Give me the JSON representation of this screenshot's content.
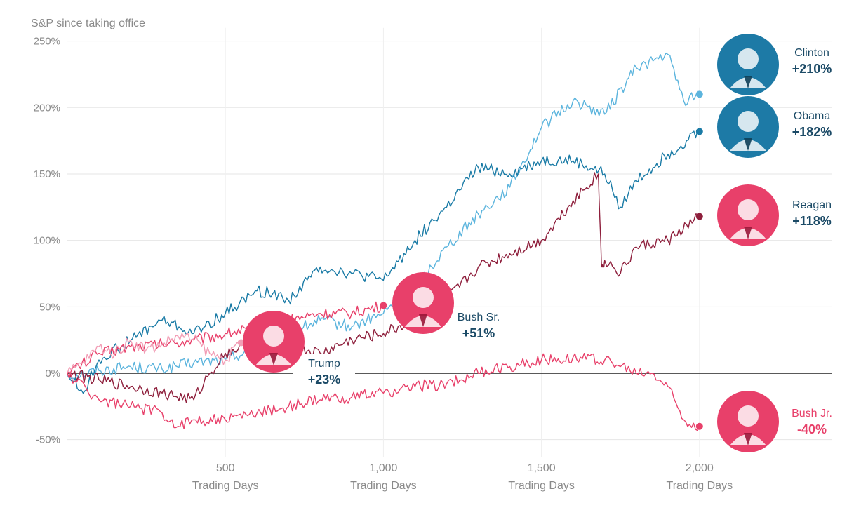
{
  "chart_data": {
    "type": "line",
    "title": "S&P since taking office",
    "ylim": [
      -60,
      260
    ],
    "xlim": [
      0,
      2450
    ],
    "y_ticks": [
      {
        "value": 250,
        "label": "250%"
      },
      {
        "value": 200,
        "label": "200%"
      },
      {
        "value": 150,
        "label": "150%"
      },
      {
        "value": 100,
        "label": "100%"
      },
      {
        "value": 50,
        "label": "50%"
      },
      {
        "value": 0,
        "label": "0%"
      },
      {
        "value": -50,
        "label": "-50%"
      }
    ],
    "x_ticks": [
      {
        "value": 500,
        "label": "500",
        "sublabel": "Trading Days"
      },
      {
        "value": 1000,
        "label": "1,000",
        "sublabel": "Trading Days"
      },
      {
        "value": 1500,
        "label": "1,500",
        "sublabel": "Trading Days"
      },
      {
        "value": 2000,
        "label": "2,000",
        "sublabel": "Trading Days"
      }
    ],
    "grid": true,
    "series": [
      {
        "name": "Clinton",
        "value_label": "+210%",
        "color": "#5bb4dd",
        "label_color": "#1b4a66",
        "badge_color": "#1d7aa6",
        "x": [
          0,
          100,
          200,
          300,
          400,
          500,
          600,
          700,
          800,
          900,
          1000,
          1100,
          1200,
          1300,
          1400,
          1500,
          1600,
          1700,
          1800,
          1900,
          1950,
          2000
        ],
        "y": [
          -2,
          2,
          5,
          3,
          8,
          10,
          20,
          30,
          40,
          35,
          45,
          65,
          95,
          120,
          140,
          185,
          205,
          195,
          230,
          240,
          205,
          210
        ]
      },
      {
        "name": "Obama",
        "value_label": "+182%",
        "color": "#1a7ba6",
        "label_color": "#1b4a66",
        "badge_color": "#1d7aa6",
        "x": [
          0,
          50,
          100,
          200,
          300,
          400,
          500,
          600,
          650,
          700,
          800,
          900,
          1000,
          1100,
          1200,
          1300,
          1400,
          1500,
          1600,
          1700,
          1750,
          1800,
          1900,
          2000
        ],
        "y": [
          0,
          -15,
          10,
          25,
          40,
          30,
          45,
          62,
          60,
          55,
          80,
          75,
          70,
          100,
          125,
          155,
          150,
          160,
          160,
          150,
          125,
          145,
          165,
          182
        ]
      },
      {
        "name": "Reagan",
        "value_label": "+118%",
        "color": "#8e1f3c",
        "label_color": "#1b4a66",
        "badge_color": "#e8406a",
        "x": [
          0,
          100,
          200,
          300,
          400,
          450,
          500,
          600,
          700,
          800,
          900,
          1000,
          1100,
          1200,
          1300,
          1400,
          1500,
          1600,
          1680,
          1690,
          1700,
          1750,
          1800,
          1900,
          2000
        ],
        "y": [
          0,
          -5,
          -10,
          -15,
          -20,
          0,
          15,
          25,
          20,
          15,
          25,
          30,
          40,
          55,
          80,
          90,
          100,
          130,
          150,
          80,
          85,
          75,
          95,
          100,
          118
        ]
      },
      {
        "name": "Bush Sr.",
        "value_label": "+51%",
        "color": "#e8406a",
        "label_color": "#1b4a66",
        "badge_color": "#e8406a",
        "x": [
          0,
          100,
          200,
          300,
          400,
          500,
          600,
          700,
          800,
          900,
          1000
        ],
        "y": [
          0,
          15,
          20,
          22,
          25,
          30,
          35,
          40,
          45,
          45,
          51
        ]
      },
      {
        "name": "Trump",
        "value_label": "+23%",
        "color": "#f29db5",
        "label_color": "#1b4a66",
        "badge_color": "#e8406a",
        "x": [
          0,
          50,
          100,
          150,
          200,
          250,
          300,
          350,
          400,
          450,
          500,
          550
        ],
        "y": [
          0,
          8,
          20,
          15,
          25,
          18,
          22,
          28,
          26,
          15,
          10,
          23
        ]
      },
      {
        "name": "Bush Jr.",
        "value_label": "-40%",
        "color": "#e8406a",
        "label_color": "#e8406a",
        "badge_color": "#e8406a",
        "x": [
          0,
          100,
          200,
          300,
          350,
          400,
          500,
          600,
          700,
          800,
          900,
          1000,
          1100,
          1200,
          1300,
          1400,
          1500,
          1600,
          1700,
          1750,
          1800,
          1850,
          1900,
          1950,
          2000
        ],
        "y": [
          0,
          -20,
          -25,
          -30,
          -40,
          -35,
          -35,
          -30,
          -25,
          -20,
          -18,
          -15,
          -10,
          -8,
          0,
          5,
          10,
          12,
          10,
          5,
          0,
          0,
          -10,
          -35,
          -40
        ]
      }
    ]
  }
}
